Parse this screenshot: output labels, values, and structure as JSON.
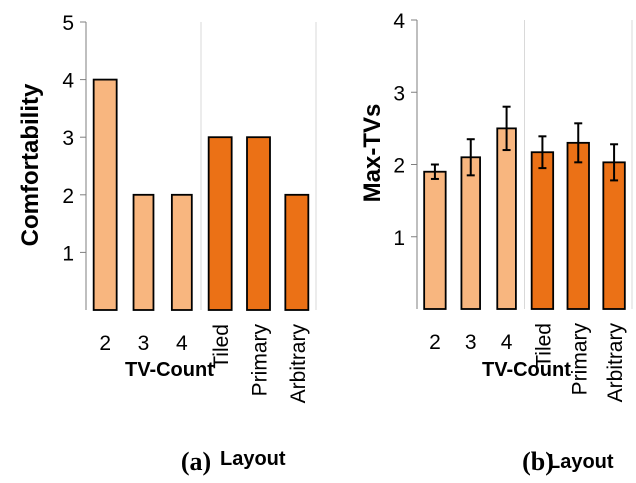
{
  "chart_data": [
    {
      "type": "bar",
      "ylabel": "Comfortability",
      "ylim": [
        0,
        5
      ],
      "yticks": [
        1,
        2,
        3,
        4,
        5
      ],
      "categories": [
        "2",
        "3",
        "4",
        "Tiled",
        "Primary",
        "Arbitrary"
      ],
      "values": [
        4,
        2,
        2,
        3,
        3,
        2
      ],
      "group_labels": [
        "TV-Count",
        "Layout"
      ],
      "caption": "(a)",
      "grid": "vertical divider only"
    },
    {
      "type": "bar",
      "ylabel": "Max-TVs",
      "ylim": [
        0,
        4
      ],
      "yticks": [
        1,
        2,
        3,
        4
      ],
      "categories": [
        "2",
        "3",
        "4",
        "Tiled",
        "Primary",
        "Arbitrary"
      ],
      "values": [
        1.9,
        2.1,
        2.5,
        2.17,
        2.3,
        2.03
      ],
      "error": [
        0.1,
        0.25,
        0.3,
        0.22,
        0.27,
        0.25
      ],
      "group_labels": [
        "TV-Count",
        "Layout"
      ],
      "caption": "(b)",
      "grid": "vertical divider only"
    }
  ],
  "colors": {
    "tv_count": "#F8B67F",
    "layout": "#EB7116",
    "border": "#000000",
    "axis": "#7f7f7f",
    "grid": "#d9d9d9"
  }
}
